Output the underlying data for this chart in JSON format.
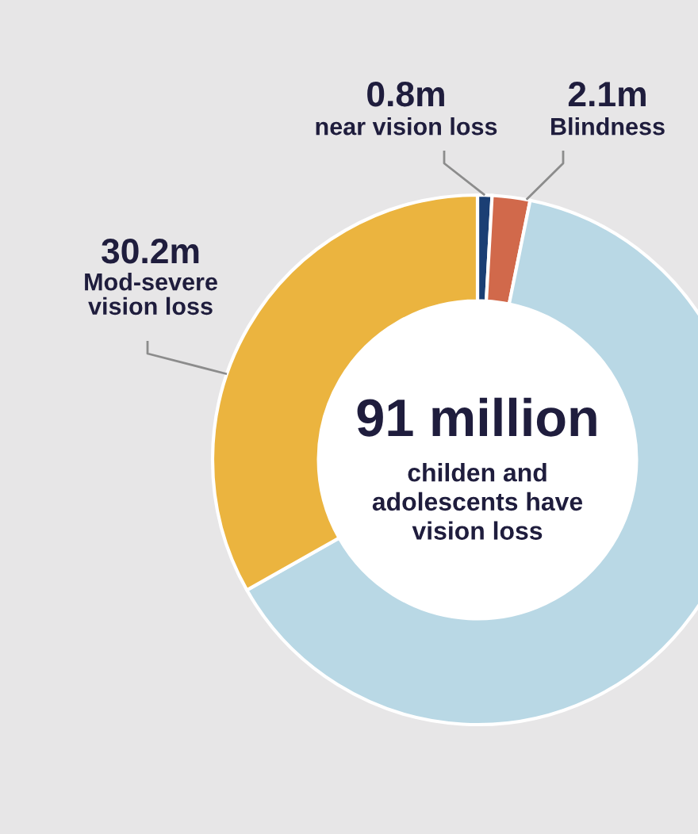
{
  "chart_data": {
    "type": "donut",
    "title": "91 million",
    "subtitle": "childen and\nadolescents have\nvision loss",
    "categories": [
      "near vision loss",
      "Blindness",
      null,
      "Mod-severe\nvision loss"
    ],
    "values": [
      0.8,
      2.1,
      57.9,
      30.2
    ],
    "colors": [
      "#1b3f74",
      "#d1694b",
      "#b9d8e5",
      "#ebb43f"
    ],
    "value_labels": [
      "0.8m",
      "2.1m",
      null,
      "30.2m"
    ]
  }
}
